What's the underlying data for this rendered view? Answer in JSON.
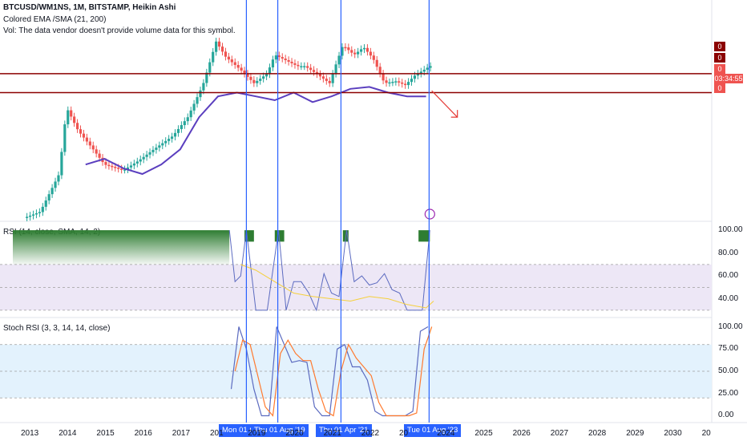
{
  "legend": {
    "symbol": "BTCUSD/WM1NS, 1M, BITSTAMP, Heikin Ashi",
    "indicator": "Colored EMA /SMA (21, 200)",
    "volume_note": "Vol: The data vendor doesn't provide volume data for this symbol."
  },
  "panes": {
    "rsi_title": "RSI (14, close, SMA, 14, 2)",
    "stoch_title": "Stoch RSI (3, 3, 14, 14, close)"
  },
  "price_badges": {
    "b1": "0",
    "b2": "0",
    "b3": "0",
    "countdown": "03:34:55",
    "b4": "0"
  },
  "colors": {
    "bull": "#26a69a",
    "bear": "#ef5350",
    "ema": "#5b3fbf",
    "ema_bull": "#9bd64a",
    "hline": "#8b0000",
    "vline": "#2962ff",
    "arrow": "#e53935",
    "rsi_line": "#5c6bc0",
    "rsi_ma": "#f5d03b",
    "stoch_k": "#5c6bc0",
    "stoch_d": "#ff7a2f",
    "rsi_band": "#ede7f6",
    "stoch_band": "#e3f2fd"
  },
  "date_flags": [
    "Mon 01 Oc",
    "Thu 01 Aug '19",
    "Thu 01 Apr '21",
    "Tue 01 Aug '23"
  ],
  "chart_data": [
    {
      "type": "line",
      "title": "BTCUSD/WM1NS, 1M, BITSTAMP, Heikin Ashi",
      "x_labels": [
        "2013",
        "2014",
        "2015",
        "2016",
        "2017",
        "201",
        "2019",
        "2020",
        "2021",
        "2022",
        "20",
        "2024",
        "2025",
        "2026",
        "2027",
        "2028",
        "2029",
        "2030",
        "20"
      ],
      "series": [
        {
          "name": "Colored EMA /SMA (21, 200)",
          "x": [
            2014.5,
            2015.0,
            2015.5,
            2016.0,
            2016.5,
            2017.0,
            2017.5,
            2018.0,
            2018.5,
            2019.0,
            2019.5,
            2020.0,
            2020.5,
            2021.0,
            2021.5,
            2022.0,
            2022.5,
            2023.0,
            2023.5
          ],
          "values": [
            0.3,
            0.33,
            0.28,
            0.25,
            0.3,
            0.38,
            0.55,
            0.66,
            0.68,
            0.66,
            0.64,
            0.68,
            0.63,
            0.66,
            0.7,
            0.71,
            0.68,
            0.66,
            0.66
          ]
        }
      ],
      "horizontal_levels": [
        0.78,
        0.68
      ]
    },
    {
      "type": "line",
      "title": "RSI (14, close, SMA, 14, 2)",
      "y_ticks": [
        100.0,
        80.0,
        60.0,
        40.0
      ],
      "ylim": [
        25,
        105
      ],
      "bands": [
        30,
        70
      ],
      "series": [
        {
          "name": "RSI",
          "x": [
            2018.3,
            2018.45,
            2018.6,
            2018.75,
            2019.0,
            2019.3,
            2019.6,
            2019.8,
            2020.0,
            2020.2,
            2020.4,
            2020.6,
            2020.8,
            2021.0,
            2021.2,
            2021.4,
            2021.6,
            2021.8,
            2022.0,
            2022.2,
            2022.4,
            2022.6,
            2022.8,
            2023.0,
            2023.2,
            2023.4,
            2023.6
          ],
          "values": [
            100,
            55,
            60,
            100,
            30,
            30,
            100,
            30,
            55,
            55,
            45,
            30,
            62,
            45,
            42,
            100,
            55,
            60,
            52,
            54,
            62,
            48,
            45,
            30,
            30,
            30,
            100
          ]
        },
        {
          "name": "RSI-based MA",
          "x": [
            2018.6,
            2019.0,
            2019.5,
            2020.0,
            2020.5,
            2021.0,
            2021.5,
            2022.0,
            2022.5,
            2023.0,
            2023.5,
            2023.7
          ],
          "values": [
            70,
            65,
            55,
            45,
            42,
            40,
            38,
            42,
            40,
            35,
            32,
            38
          ]
        }
      ]
    },
    {
      "type": "line",
      "title": "Stoch RSI (3, 3, 14, 14, close)",
      "y_ticks": [
        100.0,
        75.0,
        50.0,
        25.0,
        0.0
      ],
      "ylim": [
        -5,
        105
      ],
      "bands": [
        20,
        80
      ],
      "series": [
        {
          "name": "K",
          "x": [
            2018.35,
            2018.55,
            2018.75,
            2018.95,
            2019.15,
            2019.35,
            2019.55,
            2019.75,
            2019.95,
            2020.15,
            2020.35,
            2020.55,
            2020.75,
            2020.95,
            2021.15,
            2021.35,
            2021.55,
            2021.75,
            2021.95,
            2022.15,
            2022.35,
            2022.55,
            2022.75,
            2022.95,
            2023.15,
            2023.35,
            2023.55
          ],
          "values": [
            30,
            100,
            75,
            30,
            0,
            0,
            100,
            80,
            60,
            62,
            60,
            10,
            0,
            0,
            75,
            80,
            55,
            55,
            40,
            5,
            0,
            0,
            0,
            0,
            5,
            95,
            100
          ]
        },
        {
          "name": "D",
          "x": [
            2018.45,
            2018.65,
            2018.85,
            2019.05,
            2019.25,
            2019.45,
            2019.65,
            2019.85,
            2020.05,
            2020.25,
            2020.45,
            2020.65,
            2020.85,
            2021.05,
            2021.25,
            2021.45,
            2021.65,
            2021.85,
            2022.05,
            2022.25,
            2022.45,
            2022.65,
            2022.85,
            2023.05,
            2023.25,
            2023.45,
            2023.65
          ],
          "values": [
            50,
            85,
            80,
            45,
            10,
            0,
            70,
            85,
            70,
            62,
            62,
            30,
            5,
            0,
            50,
            80,
            65,
            55,
            45,
            15,
            0,
            0,
            0,
            0,
            3,
            75,
            100
          ]
        }
      ]
    }
  ]
}
